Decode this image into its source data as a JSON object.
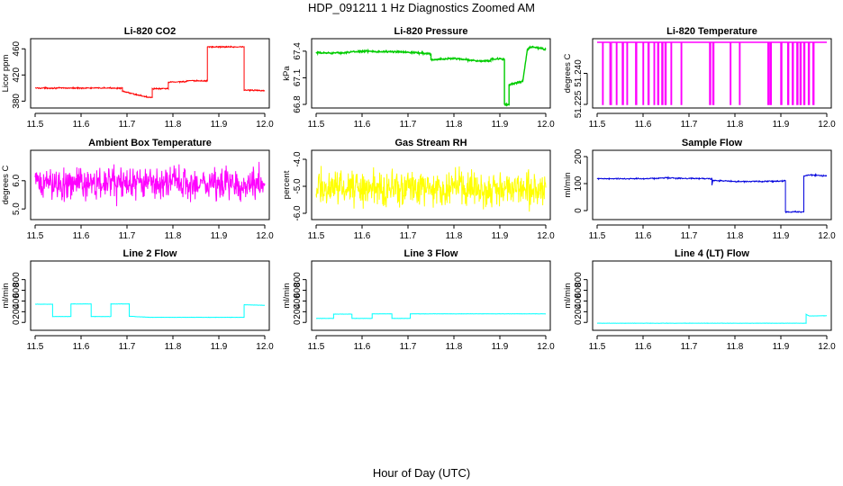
{
  "figure": {
    "title": "HDP_091211  1 Hz Diagnostics Zoomed AM",
    "x_axis_title": "Hour of Day (UTC)"
  },
  "chart_data": [
    {
      "type": "line",
      "title": "Li-820 CO2",
      "xlabel": "",
      "ylabel": "Licor ppm",
      "color": "#ff0000",
      "noise": 0.6,
      "xlim": [
        11.5,
        12.0
      ],
      "ylim": [
        375,
        470
      ],
      "xticks": [
        "11.5",
        "11.6",
        "11.7",
        "11.8",
        "11.9",
        "12.0"
      ],
      "yticks": [
        "380",
        "420",
        "460"
      ],
      "series": [
        {
          "values": [
            [
              11.5,
              400
            ],
            [
              11.69,
              400
            ],
            [
              11.69,
              395
            ],
            [
              11.745,
              386
            ],
            [
              11.745,
              386
            ],
            [
              11.755,
              386
            ],
            [
              11.755,
              399
            ],
            [
              11.79,
              399
            ],
            [
              11.79,
              409
            ],
            [
              11.83,
              410
            ],
            [
              11.83,
              411
            ],
            [
              11.875,
              411
            ],
            [
              11.875,
              463
            ],
            [
              11.955,
              463
            ],
            [
              11.955,
              397
            ],
            [
              12.0,
              396
            ]
          ]
        }
      ]
    },
    {
      "type": "line",
      "title": "Li-820 Pressure",
      "xlabel": "",
      "ylabel": "kPa",
      "color": "#00cc00",
      "noise": 0.006,
      "xlim": [
        11.5,
        12.0
      ],
      "ylim": [
        66.8,
        67.5
      ],
      "xticks": [
        "11.5",
        "11.6",
        "11.7",
        "11.8",
        "11.9",
        "12.0"
      ],
      "yticks": [
        "66.8",
        "67.1",
        "67.4"
      ],
      "series": [
        {
          "values": [
            [
              11.5,
              67.38
            ],
            [
              11.55,
              67.38
            ],
            [
              11.6,
              67.4
            ],
            [
              11.7,
              67.39
            ],
            [
              11.75,
              67.37
            ],
            [
              11.75,
              67.3
            ],
            [
              11.8,
              67.32
            ],
            [
              11.85,
              67.29
            ],
            [
              11.88,
              67.29
            ],
            [
              11.88,
              67.31
            ],
            [
              11.91,
              67.31
            ],
            [
              11.91,
              66.8
            ],
            [
              11.92,
              66.8
            ],
            [
              11.92,
              67.02
            ],
            [
              11.95,
              67.06
            ],
            [
              11.96,
              67.42
            ],
            [
              11.97,
              67.45
            ],
            [
              12.0,
              67.42
            ]
          ]
        }
      ]
    },
    {
      "type": "line",
      "title": "Li-820 Temperature",
      "xlabel": "",
      "ylabel": "degrees C",
      "color": "#ff00ff",
      "noise": 0,
      "xlim": [
        11.5,
        12.0
      ],
      "ylim": [
        51.225,
        51.255
      ],
      "xticks": [
        "11.5",
        "11.6",
        "11.7",
        "11.8",
        "11.9",
        "12.0"
      ],
      "yticks": [
        "51.225",
        "51.240"
      ],
      "series": [
        {
          "values": [
            [
              11.5,
              51.255
            ],
            [
              11.512,
              51.255
            ],
            [
              11.512,
              51.225
            ],
            [
              11.513,
              51.225
            ],
            [
              11.513,
              51.255
            ],
            [
              11.528,
              51.255
            ],
            [
              11.528,
              51.225
            ],
            [
              11.531,
              51.225
            ],
            [
              11.531,
              51.255
            ],
            [
              11.542,
              51.255
            ],
            [
              11.542,
              51.225
            ],
            [
              11.543,
              51.225
            ],
            [
              11.543,
              51.255
            ],
            [
              11.555,
              51.255
            ],
            [
              11.555,
              51.225
            ],
            [
              11.557,
              51.225
            ],
            [
              11.557,
              51.255
            ],
            [
              11.565,
              51.255
            ],
            [
              11.565,
              51.225
            ],
            [
              11.566,
              51.225
            ],
            [
              11.566,
              51.255
            ],
            [
              11.584,
              51.255
            ],
            [
              11.584,
              51.225
            ],
            [
              11.586,
              51.225
            ],
            [
              11.586,
              51.255
            ],
            [
              11.6,
              51.255
            ],
            [
              11.6,
              51.225
            ],
            [
              11.601,
              51.225
            ],
            [
              11.601,
              51.255
            ],
            [
              11.611,
              51.255
            ],
            [
              11.611,
              51.225
            ],
            [
              11.613,
              51.225
            ],
            [
              11.613,
              51.255
            ],
            [
              11.624,
              51.255
            ],
            [
              11.624,
              51.225
            ],
            [
              11.625,
              51.225
            ],
            [
              11.625,
              51.255
            ],
            [
              11.632,
              51.255
            ],
            [
              11.632,
              51.225
            ],
            [
              11.634,
              51.225
            ],
            [
              11.634,
              51.255
            ],
            [
              11.641,
              51.255
            ],
            [
              11.641,
              51.225
            ],
            [
              11.643,
              51.225
            ],
            [
              11.643,
              51.255
            ],
            [
              11.648,
              51.255
            ],
            [
              11.648,
              51.225
            ],
            [
              11.65,
              51.225
            ],
            [
              11.65,
              51.255
            ],
            [
              11.661,
              51.255
            ],
            [
              11.661,
              51.225
            ],
            [
              11.662,
              51.225
            ],
            [
              11.662,
              51.255
            ],
            [
              11.683,
              51.255
            ],
            [
              11.683,
              51.225
            ],
            [
              11.684,
              51.225
            ],
            [
              11.684,
              51.255
            ],
            [
              11.745,
              51.255
            ],
            [
              11.745,
              51.225
            ],
            [
              11.747,
              51.225
            ],
            [
              11.747,
              51.255
            ],
            [
              11.752,
              51.255
            ],
            [
              11.752,
              51.225
            ],
            [
              11.754,
              51.225
            ],
            [
              11.754,
              51.255
            ],
            [
              11.79,
              51.255
            ],
            [
              11.79,
              51.225
            ],
            [
              11.791,
              51.225
            ],
            [
              11.791,
              51.255
            ],
            [
              11.81,
              51.255
            ],
            [
              11.81,
              51.225
            ],
            [
              11.811,
              51.225
            ],
            [
              11.811,
              51.255
            ],
            [
              11.872,
              51.255
            ],
            [
              11.872,
              51.225
            ],
            [
              11.874,
              51.225
            ],
            [
              11.874,
              51.255
            ],
            [
              11.877,
              51.255
            ],
            [
              11.877,
              51.225
            ],
            [
              11.879,
              51.225
            ],
            [
              11.879,
              51.255
            ],
            [
              11.9,
              51.255
            ],
            [
              11.9,
              51.225
            ],
            [
              11.902,
              51.225
            ],
            [
              11.902,
              51.255
            ],
            [
              11.915,
              51.255
            ],
            [
              11.915,
              51.225
            ],
            [
              11.917,
              51.225
            ],
            [
              11.917,
              51.255
            ],
            [
              11.925,
              51.255
            ],
            [
              11.925,
              51.225
            ],
            [
              11.927,
              51.225
            ],
            [
              11.927,
              51.255
            ],
            [
              11.935,
              51.255
            ],
            [
              11.935,
              51.225
            ],
            [
              11.937,
              51.225
            ],
            [
              11.937,
              51.255
            ],
            [
              11.942,
              51.255
            ],
            [
              11.942,
              51.225
            ],
            [
              11.944,
              51.225
            ],
            [
              11.944,
              51.255
            ],
            [
              11.95,
              51.255
            ],
            [
              11.95,
              51.225
            ],
            [
              11.952,
              51.225
            ],
            [
              11.952,
              51.255
            ],
            [
              11.96,
              51.255
            ],
            [
              11.96,
              51.225
            ],
            [
              11.962,
              51.225
            ],
            [
              11.962,
              51.255
            ],
            [
              11.97,
              51.255
            ],
            [
              11.97,
              51.225
            ],
            [
              11.972,
              51.225
            ],
            [
              11.972,
              51.255
            ],
            [
              12.0,
              51.255
            ]
          ]
        }
      ]
    },
    {
      "type": "line",
      "title": "Ambient Box Temperature",
      "xlabel": "",
      "ylabel": "degrees C",
      "color": "#ff00ff",
      "noise": 0.35,
      "xlim": [
        11.5,
        12.0
      ],
      "ylim": [
        4.75,
        6.95
      ],
      "xticks": [
        "11.5",
        "11.6",
        "11.7",
        "11.8",
        "11.9",
        "12.0"
      ],
      "yticks": [
        "5.0",
        "6.0"
      ],
      "series": [
        {
          "values": [
            [
              11.5,
              5.9
            ],
            [
              12.0,
              5.9
            ]
          ]
        }
      ]
    },
    {
      "type": "line",
      "title": "Gas Stream RH",
      "xlabel": "",
      "ylabel": "percent",
      "color": "#ffff00",
      "noise": 0.4,
      "xlim": [
        11.5,
        12.0
      ],
      "ylim": [
        -6.1,
        -3.8
      ],
      "xticks": [
        "11.5",
        "11.6",
        "11.7",
        "11.8",
        "11.9",
        "12.0"
      ],
      "yticks": [
        "-6.0",
        "-5.0",
        "-4.0"
      ],
      "series": [
        {
          "values": [
            [
              11.5,
              -5.05
            ],
            [
              12.0,
              -5.05
            ]
          ]
        }
      ]
    },
    {
      "type": "line",
      "title": "Sample Flow",
      "xlabel": "",
      "ylabel": "ml/min",
      "color": "#0000dd",
      "noise": 1.5,
      "xlim": [
        11.5,
        12.0
      ],
      "ylim": [
        -20,
        210
      ],
      "xticks": [
        "11.5",
        "11.6",
        "11.7",
        "11.8",
        "11.9",
        "12.0"
      ],
      "yticks": [
        "0",
        "100",
        "200"
      ],
      "series": [
        {
          "values": [
            [
              11.5,
              118
            ],
            [
              11.6,
              118
            ],
            [
              11.65,
              121
            ],
            [
              11.75,
              118
            ],
            [
              11.75,
              95
            ],
            [
              11.752,
              112
            ],
            [
              11.8,
              108
            ],
            [
              11.87,
              108
            ],
            [
              11.91,
              110
            ],
            [
              11.91,
              -5
            ],
            [
              11.95,
              -5
            ],
            [
              11.95,
              128
            ],
            [
              11.96,
              132
            ],
            [
              12.0,
              128
            ]
          ]
        }
      ]
    },
    {
      "type": "line",
      "title": "Line 2 Flow",
      "xlabel": "",
      "ylabel": "ml/min",
      "color": "#00ffff",
      "noise": 1.5,
      "xlim": [
        11.5,
        12.0
      ],
      "ylim": [
        -80,
        1080
      ],
      "xticks": [
        "11.5",
        "11.6",
        "11.7",
        "11.8",
        "11.9",
        "12.0"
      ],
      "yticks": [
        "0",
        "200",
        "400",
        "600",
        "800"
      ],
      "series": [
        {
          "values": [
            [
              11.5,
              340
            ],
            [
              11.538,
              340
            ],
            [
              11.538,
              110
            ],
            [
              11.578,
              110
            ],
            [
              11.578,
              345
            ],
            [
              11.622,
              345
            ],
            [
              11.622,
              110
            ],
            [
              11.665,
              110
            ],
            [
              11.665,
              345
            ],
            [
              11.705,
              345
            ],
            [
              11.705,
              115
            ],
            [
              11.75,
              95
            ],
            [
              11.955,
              95
            ],
            [
              11.955,
              330
            ],
            [
              12.0,
              320
            ]
          ]
        }
      ]
    },
    {
      "type": "line",
      "title": "Line 3 Flow",
      "xlabel": "",
      "ylabel": "ml/min",
      "color": "#00ffff",
      "noise": 1.5,
      "xlim": [
        11.5,
        12.0
      ],
      "ylim": [
        -80,
        1080
      ],
      "xticks": [
        "11.5",
        "11.6",
        "11.7",
        "11.8",
        "11.9",
        "12.0"
      ],
      "yticks": [
        "0",
        "200",
        "400",
        "600",
        "800"
      ],
      "series": [
        {
          "values": [
            [
              11.5,
              75
            ],
            [
              11.538,
              75
            ],
            [
              11.538,
              155
            ],
            [
              11.578,
              155
            ],
            [
              11.578,
              75
            ],
            [
              11.622,
              75
            ],
            [
              11.622,
              160
            ],
            [
              11.665,
              160
            ],
            [
              11.665,
              75
            ],
            [
              11.705,
              75
            ],
            [
              11.705,
              160
            ],
            [
              12.0,
              160
            ]
          ]
        }
      ]
    },
    {
      "type": "line",
      "title": "Line 4 (LT) Flow",
      "xlabel": "",
      "ylabel": "ml/min",
      "color": "#00ffff",
      "noise": 1.5,
      "xlim": [
        11.5,
        12.0
      ],
      "ylim": [
        -80,
        1080
      ],
      "xticks": [
        "11.5",
        "11.6",
        "11.7",
        "11.8",
        "11.9",
        "12.0"
      ],
      "yticks": [
        "0",
        "200",
        "400",
        "600",
        "800"
      ],
      "series": [
        {
          "values": [
            [
              11.5,
              -15
            ],
            [
              11.955,
              -15
            ],
            [
              11.955,
              150
            ],
            [
              11.962,
              120
            ],
            [
              12.0,
              125
            ]
          ]
        }
      ]
    }
  ]
}
